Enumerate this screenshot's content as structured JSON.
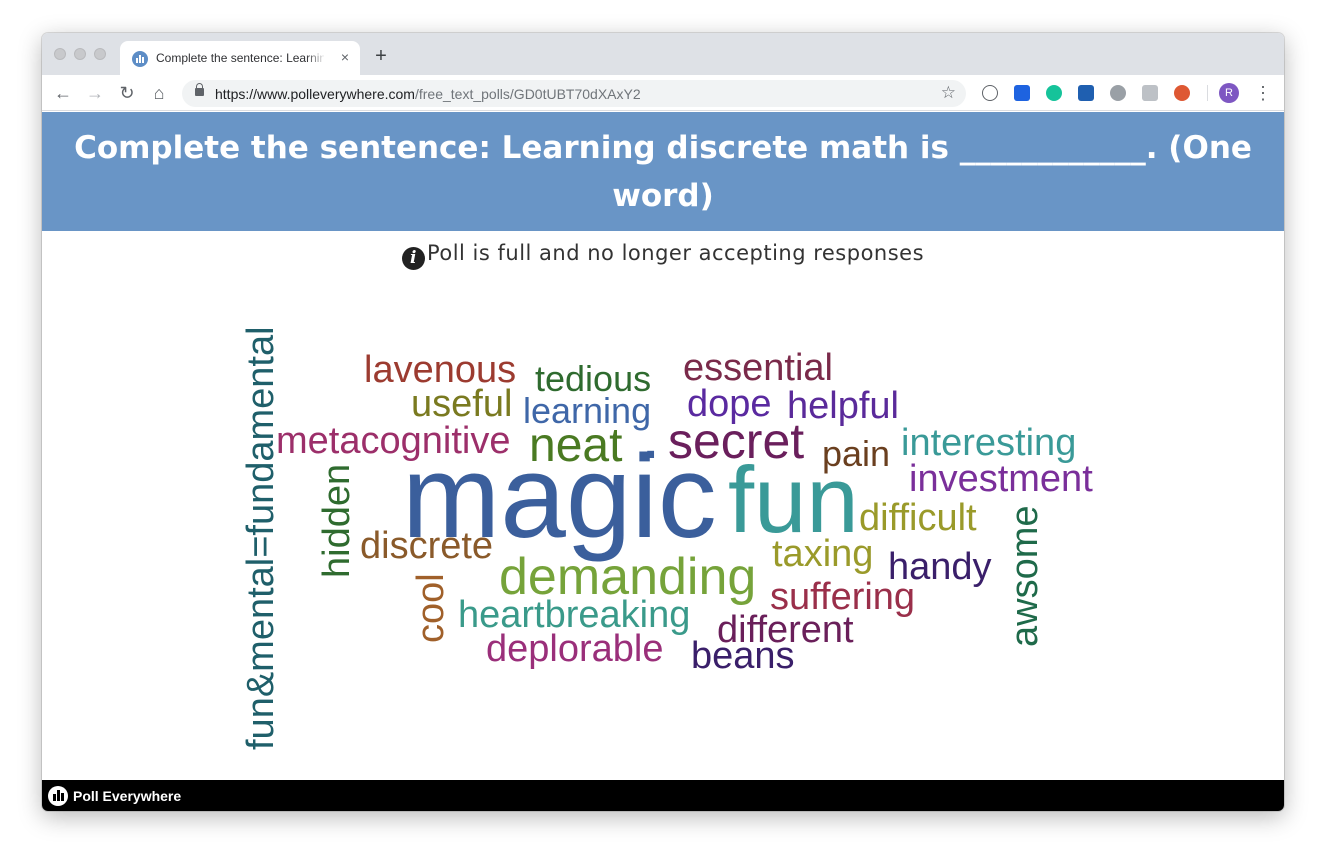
{
  "browser": {
    "tab_title": "Complete the sentence: Learning discrete math is ____________. (One word)",
    "tab_close": "×",
    "new_tab": "+",
    "url_host": "https://www.polleverywhere.com",
    "url_path": "/free_text_polls/GD0tUBT70dXAxY2",
    "profile_initial": "R",
    "icons": [
      "back-icon",
      "forward-icon",
      "reload-icon",
      "home-icon",
      "lock-icon",
      "star-icon",
      "menu-icon"
    ]
  },
  "poll": {
    "question": "Complete the sentence: Learning discrete math is ____________. (One word)",
    "status_icon": "i",
    "status": "Poll is full and no longer accepting responses"
  },
  "word_cloud": {
    "words": [
      {
        "text": "magic",
        "color": "#3b5f9c"
      },
      {
        "text": "fun",
        "color": "#3a9a98"
      },
      {
        "text": "neat",
        "color": "#4a7a22"
      },
      {
        "text": "secret",
        "color": "#6a1f5c"
      },
      {
        "text": "demanding",
        "color": "#76a33a"
      },
      {
        "text": "fun&mental=fundamental",
        "color": "#1f5f6a"
      },
      {
        "text": "lavenous",
        "color": "#9c3b30"
      },
      {
        "text": "tedious",
        "color": "#2f6b2f"
      },
      {
        "text": "essential",
        "color": "#7a2a4a"
      },
      {
        "text": "useful",
        "color": "#7a7a20"
      },
      {
        "text": "learning",
        "color": "#3f67a8"
      },
      {
        "text": "dope",
        "color": "#5a2aa0"
      },
      {
        "text": "helpful",
        "color": "#5a2a9a"
      },
      {
        "text": "metacognitive",
        "color": "#9c2f6a"
      },
      {
        "text": "pain",
        "color": "#6a3f1f"
      },
      {
        "text": "interesting",
        "color": "#3a9a98"
      },
      {
        "text": "investment",
        "color": "#7a2f9a"
      },
      {
        "text": "difficult",
        "color": "#9a9a2a"
      },
      {
        "text": "hidden",
        "color": "#2f6b2f"
      },
      {
        "text": "discrete",
        "color": "#8a5a2a"
      },
      {
        "text": "taxing",
        "color": "#9a9a2a"
      },
      {
        "text": "handy",
        "color": "#3a1f6a"
      },
      {
        "text": "awsome",
        "color": "#1f6a4a"
      },
      {
        "text": "cool",
        "color": "#a0602a"
      },
      {
        "text": "suffering",
        "color": "#9a2f4a"
      },
      {
        "text": "heartbreaking",
        "color": "#3a9a8a"
      },
      {
        "text": "different",
        "color": "#6a1f5a"
      },
      {
        "text": "deplorable",
        "color": "#9a2f7a"
      },
      {
        "text": "beans",
        "color": "#3a1f6a"
      },
      {
        "text": ".",
        "color": "#3b5f9c"
      }
    ]
  },
  "footer": {
    "brand": "Poll Everywhere"
  }
}
